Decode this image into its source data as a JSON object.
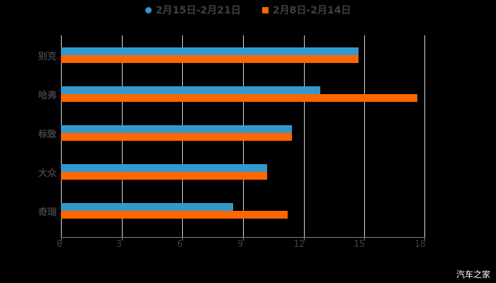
{
  "chart_data": {
    "type": "bar",
    "orientation": "horizontal",
    "title": "",
    "categories": [
      "别克",
      "哈弗",
      "标致",
      "大众",
      "奇瑞"
    ],
    "series": [
      {
        "name": "2月15日-2月21日",
        "color": "#3399cc",
        "values": [
          14.7,
          12.8,
          11.4,
          10.2,
          8.5
        ]
      },
      {
        "name": "2月8日-2月14日",
        "color": "#ff6600",
        "values": [
          14.7,
          17.6,
          11.4,
          10.2,
          11.2
        ]
      }
    ],
    "xlabel": "",
    "ylabel": "",
    "xlim": [
      0,
      18
    ],
    "xticks": [
      "0",
      "3",
      "6",
      "9",
      "12",
      "15",
      "18"
    ],
    "grid": true,
    "legend_position": "top"
  },
  "legend": {
    "series0": "2月15日-2月21日",
    "series1": "2月8日-2月14日"
  },
  "categories": {
    "c0": "别克",
    "c1": "哈弗",
    "c2": "标致",
    "c3": "大众",
    "c4": "奇瑞"
  },
  "ticks": {
    "t0": "0",
    "t1": "3",
    "t2": "6",
    "t3": "9",
    "t4": "12",
    "t5": "15",
    "t6": "18"
  },
  "watermark": "汽车之家"
}
